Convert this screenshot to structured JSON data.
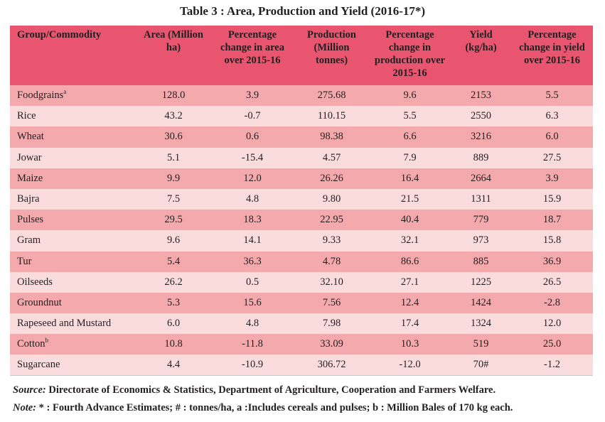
{
  "title": "Table 3 : Area, Production and Yield (2016-17*)",
  "columns": [
    "Group/Commodity",
    "Area (Million ha)",
    "Percentage change in area over 2015-16",
    "Production (Million tonnes)",
    "Percentage change in production over 2015-16",
    "Yield (kg/ha)",
    "Percentage change in yield over 2015-16"
  ],
  "rows": [
    {
      "name": "Foodgrains",
      "sup": "a",
      "area": "128.0",
      "area_chg": "3.9",
      "prod": "275.68",
      "prod_chg": "9.6",
      "yield": "2153",
      "yield_chg": "5.5"
    },
    {
      "name": "Rice",
      "sup": "",
      "area": "43.2",
      "area_chg": "-0.7",
      "prod": "110.15",
      "prod_chg": "5.5",
      "yield": "2550",
      "yield_chg": "6.3"
    },
    {
      "name": "Wheat",
      "sup": "",
      "area": "30.6",
      "area_chg": "0.6",
      "prod": "98.38",
      "prod_chg": "6.6",
      "yield": "3216",
      "yield_chg": "6.0"
    },
    {
      "name": "Jowar",
      "sup": "",
      "area": "5.1",
      "area_chg": "-15.4",
      "prod": "4.57",
      "prod_chg": "7.9",
      "yield": "889",
      "yield_chg": "27.5"
    },
    {
      "name": "Maize",
      "sup": "",
      "area": "9.9",
      "area_chg": "12.0",
      "prod": "26.26",
      "prod_chg": "16.4",
      "yield": "2664",
      "yield_chg": "3.9"
    },
    {
      "name": "Bajra",
      "sup": "",
      "area": "7.5",
      "area_chg": "4.8",
      "prod": "9.80",
      "prod_chg": "21.5",
      "yield": "1311",
      "yield_chg": "15.9"
    },
    {
      "name": "Pulses",
      "sup": "",
      "area": "29.5",
      "area_chg": "18.3",
      "prod": "22.95",
      "prod_chg": "40.4",
      "yield": "779",
      "yield_chg": "18.7"
    },
    {
      "name": "Gram",
      "sup": "",
      "area": "9.6",
      "area_chg": "14.1",
      "prod": "9.33",
      "prod_chg": "32.1",
      "yield": "973",
      "yield_chg": "15.8"
    },
    {
      "name": "Tur",
      "sup": "",
      "area": "5.4",
      "area_chg": "36.3",
      "prod": "4.78",
      "prod_chg": "86.6",
      "yield": "885",
      "yield_chg": "36.9"
    },
    {
      "name": "Oilseeds",
      "sup": "",
      "area": "26.2",
      "area_chg": "0.5",
      "prod": "32.10",
      "prod_chg": "27.1",
      "yield": "1225",
      "yield_chg": "26.5"
    },
    {
      "name": "Groundnut",
      "sup": "",
      "area": "5.3",
      "area_chg": "15.6",
      "prod": "7.56",
      "prod_chg": "12.4",
      "yield": "1424",
      "yield_chg": "-2.8"
    },
    {
      "name": "Rapeseed and Mustard",
      "sup": "",
      "area": "6.0",
      "area_chg": "4.8",
      "prod": "7.98",
      "prod_chg": "17.4",
      "yield": "1324",
      "yield_chg": "12.0"
    },
    {
      "name": "Cotton",
      "sup": "b",
      "area": "10.8",
      "area_chg": "-11.8",
      "prod": "33.09",
      "prod_chg": "10.3",
      "yield": "519",
      "yield_chg": "25.0"
    },
    {
      "name": "Sugarcane",
      "sup": "",
      "area": "4.4",
      "area_chg": "-10.9",
      "prod": "306.72",
      "prod_chg": "-12.0",
      "yield": "70#",
      "yield_chg": "-1.2"
    }
  ],
  "source": {
    "label": "Source:",
    "text": " Directorate of Economics & Statistics, Department of Agriculture, Cooperation and Farmers Welfare."
  },
  "note": {
    "label": "Note:",
    "text": " * : Fourth Advance Estimates; # : tonnes/ha, a :Includes cereals and pulses; b : Million Bales of 170 kg each."
  },
  "colors": {
    "header": "#e9556e",
    "row_dark": "#f4a9ad",
    "row_light": "#fbdcdd"
  }
}
